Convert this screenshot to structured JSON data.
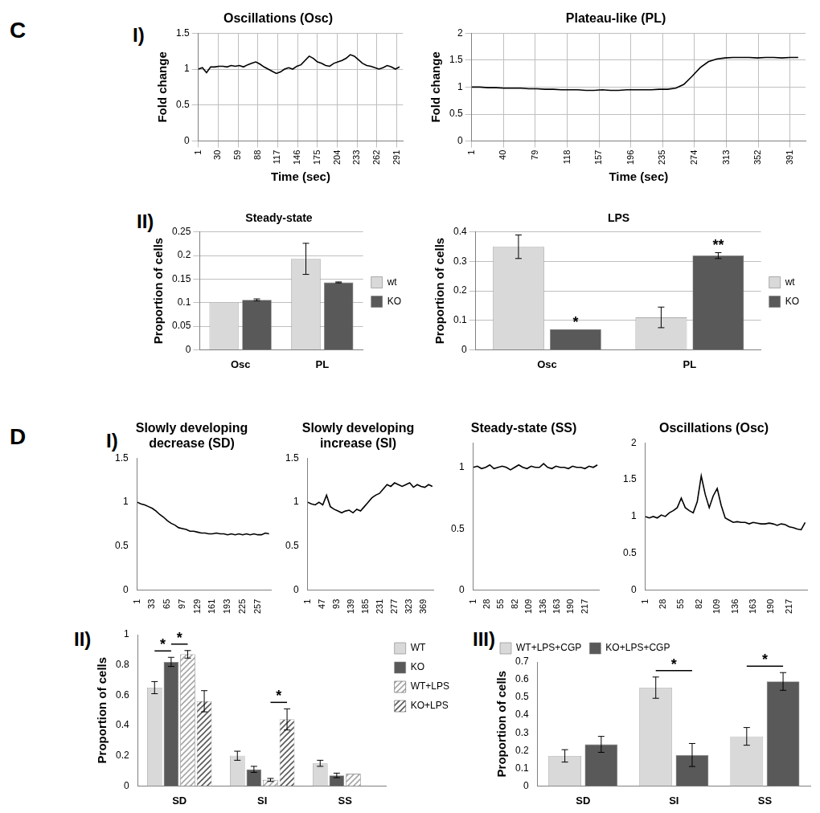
{
  "panel_labels": [
    "C",
    "I)",
    "II)",
    "D",
    "I)",
    "II)",
    "III)"
  ],
  "chart_data": [
    {
      "type": "line",
      "title": "Oscillations (Osc)",
      "x_label": "Time (sec)",
      "y_label": "Fold change",
      "color": "#000000",
      "grid": true,
      "x": [
        1,
        7,
        13,
        19,
        25,
        31,
        37,
        43,
        49,
        55,
        61,
        67,
        73,
        79,
        85,
        91,
        97,
        103,
        109,
        115,
        121,
        127,
        133,
        139,
        145,
        151,
        157,
        163,
        169,
        175,
        181,
        187,
        193,
        199,
        205,
        211,
        217,
        223,
        229,
        235,
        241,
        247,
        253,
        259,
        265,
        271,
        277,
        283,
        289,
        295
      ],
      "values": [
        1.0,
        1.02,
        0.95,
        1.03,
        1.03,
        1.04,
        1.04,
        1.03,
        1.05,
        1.04,
        1.05,
        1.03,
        1.06,
        1.08,
        1.1,
        1.07,
        1.03,
        1.0,
        0.97,
        0.94,
        0.96,
        1.0,
        1.02,
        1.0,
        1.04,
        1.06,
        1.12,
        1.18,
        1.15,
        1.1,
        1.08,
        1.05,
        1.04,
        1.08,
        1.1,
        1.12,
        1.15,
        1.2,
        1.18,
        1.13,
        1.08,
        1.05,
        1.04,
        1.02,
        1.0,
        1.02,
        1.05,
        1.03,
        1.0,
        1.03
      ],
      "xlim": [
        1,
        300
      ],
      "xticks": [
        1,
        30,
        59,
        88,
        117,
        146,
        175,
        204,
        233,
        262,
        291
      ],
      "ylim": [
        0,
        1.5
      ],
      "yticks": [
        0,
        0.5,
        1,
        1.5
      ]
    },
    {
      "type": "line",
      "title": "Plateau-like (PL)",
      "x_label": "Time (sec)",
      "y_label": "Fold change",
      "color": "#000000",
      "grid": true,
      "x": [
        1,
        11,
        21,
        31,
        41,
        51,
        61,
        71,
        81,
        91,
        101,
        111,
        121,
        131,
        141,
        151,
        161,
        171,
        181,
        191,
        201,
        211,
        221,
        231,
        241,
        251,
        261,
        271,
        281,
        291,
        301,
        311,
        321,
        331,
        341,
        351,
        361,
        371,
        381,
        391,
        401
      ],
      "values": [
        1.0,
        1.0,
        0.99,
        0.99,
        0.98,
        0.98,
        0.98,
        0.97,
        0.97,
        0.96,
        0.96,
        0.95,
        0.95,
        0.95,
        0.94,
        0.94,
        0.95,
        0.94,
        0.94,
        0.95,
        0.95,
        0.95,
        0.95,
        0.96,
        0.96,
        0.98,
        1.05,
        1.2,
        1.36,
        1.47,
        1.52,
        1.54,
        1.55,
        1.55,
        1.55,
        1.54,
        1.55,
        1.55,
        1.54,
        1.55,
        1.55
      ],
      "xlim": [
        1,
        410
      ],
      "xticks": [
        1,
        40,
        79,
        118,
        157,
        196,
        235,
        274,
        313,
        352,
        391
      ],
      "ylim": [
        0,
        2
      ],
      "yticks": [
        0,
        0.5,
        1,
        1.5,
        2
      ]
    },
    {
      "type": "bar",
      "title": "Steady-state",
      "y_label": "Proportion of cells",
      "grid": true,
      "legend": "right",
      "categories": [
        "Osc",
        "PL"
      ],
      "series": [
        {
          "name": "wt",
          "color": "#d9d9d9",
          "values": [
            0.1,
            0.193
          ],
          "errors": [
            0,
            0.033
          ]
        },
        {
          "name": "KO",
          "color": "#595959",
          "values": [
            0.106,
            0.143
          ],
          "errors": [
            0.002,
            0.001
          ]
        }
      ],
      "ylim": [
        0,
        0.25
      ],
      "yticks": [
        0,
        0.05,
        0.1,
        0.15,
        0.2,
        0.25
      ]
    },
    {
      "type": "bar",
      "title": "LPS",
      "y_label": "Proportion of cells",
      "grid": true,
      "legend": "right",
      "categories": [
        "Osc",
        "PL"
      ],
      "series": [
        {
          "name": "wt",
          "color": "#d9d9d9",
          "values": [
            0.35,
            0.11
          ],
          "errors": [
            0.04,
            0.035
          ]
        },
        {
          "name": "KO",
          "color": "#595959",
          "values": [
            0.07,
            0.32
          ],
          "errors": [
            0,
            0.01
          ]
        }
      ],
      "annotations": [
        {
          "text": "*",
          "category": "Osc",
          "series": [
            "KO"
          ]
        },
        {
          "text": "**",
          "category": "PL",
          "series": [
            "KO"
          ]
        }
      ],
      "ylim": [
        0,
        0.4
      ],
      "yticks": [
        0,
        0.1,
        0.2,
        0.3,
        0.4
      ]
    },
    {
      "type": "line",
      "title": [
        "Slowly developing",
        "decrease (SD)"
      ],
      "color": "#000000",
      "grid": false,
      "x": [
        1,
        9,
        17,
        25,
        33,
        41,
        49,
        57,
        65,
        73,
        81,
        89,
        97,
        105,
        113,
        121,
        129,
        137,
        145,
        153,
        161,
        169,
        177,
        185,
        193,
        201,
        209,
        217,
        225,
        233,
        241,
        249,
        257,
        265,
        273,
        281
      ],
      "values": [
        1.0,
        0.98,
        0.97,
        0.95,
        0.93,
        0.9,
        0.86,
        0.83,
        0.79,
        0.76,
        0.74,
        0.71,
        0.7,
        0.69,
        0.67,
        0.67,
        0.66,
        0.65,
        0.65,
        0.64,
        0.64,
        0.65,
        0.64,
        0.64,
        0.63,
        0.64,
        0.63,
        0.64,
        0.63,
        0.64,
        0.63,
        0.64,
        0.63,
        0.63,
        0.65,
        0.64
      ],
      "xlim": [
        1,
        285
      ],
      "xticks": [
        1,
        33,
        65,
        97,
        129,
        161,
        193,
        225,
        257
      ],
      "ylim": [
        0,
        1.5
      ],
      "yticks": [
        0,
        0.5,
        1,
        1.5
      ]
    },
    {
      "type": "line",
      "title": [
        "Slowly developing",
        "increase (SI)"
      ],
      "color": "#000000",
      "grid": false,
      "x": [
        1,
        13,
        25,
        37,
        49,
        61,
        73,
        85,
        97,
        109,
        121,
        133,
        145,
        157,
        169,
        181,
        193,
        205,
        217,
        229,
        241,
        253,
        265,
        277,
        289,
        301,
        313,
        325,
        337,
        349,
        361,
        373,
        385,
        397
      ],
      "values": [
        1.0,
        0.98,
        0.97,
        1.0,
        0.97,
        1.08,
        0.95,
        0.92,
        0.9,
        0.88,
        0.9,
        0.91,
        0.88,
        0.92,
        0.9,
        0.95,
        1.0,
        1.05,
        1.08,
        1.1,
        1.15,
        1.2,
        1.18,
        1.22,
        1.2,
        1.18,
        1.2,
        1.22,
        1.17,
        1.2,
        1.18,
        1.17,
        1.2,
        1.18
      ],
      "xlim": [
        1,
        400
      ],
      "xticks": [
        1,
        47,
        93,
        139,
        185,
        231,
        277,
        323,
        369
      ],
      "ylim": [
        0,
        1.5
      ],
      "yticks": [
        0,
        0.5,
        1,
        1.5
      ]
    },
    {
      "type": "line",
      "title": "Steady-state (SS)",
      "color": "#000000",
      "grid": false,
      "x": [
        1,
        9,
        17,
        25,
        33,
        41,
        49,
        57,
        65,
        73,
        81,
        89,
        97,
        105,
        113,
        121,
        129,
        137,
        145,
        153,
        161,
        169,
        177,
        185,
        193,
        201,
        209,
        217,
        225,
        233,
        241
      ],
      "values": [
        1.0,
        1.01,
        0.99,
        1.0,
        1.02,
        0.99,
        1.0,
        1.01,
        1.0,
        0.98,
        1.0,
        1.02,
        1.0,
        0.99,
        1.01,
        1.0,
        1.0,
        1.03,
        1.0,
        0.99,
        1.01,
        1.0,
        1.0,
        0.99,
        1.01,
        1.0,
        1.0,
        0.99,
        1.01,
        1.0,
        1.02
      ],
      "xlim": [
        1,
        244
      ],
      "xticks": [
        1,
        28,
        55,
        82,
        109,
        136,
        163,
        190,
        217
      ],
      "ylim": [
        0,
        1.2
      ],
      "yticks": [
        0,
        0.5,
        1
      ]
    },
    {
      "type": "line",
      "title": "Oscillations (Osc)",
      "color": "#000000",
      "grid": false,
      "x": [
        1,
        7,
        13,
        19,
        25,
        31,
        37,
        43,
        49,
        55,
        61,
        67,
        73,
        79,
        85,
        91,
        97,
        103,
        109,
        115,
        121,
        127,
        133,
        139,
        145,
        151,
        157,
        163,
        169,
        175,
        181,
        187,
        193,
        199,
        205,
        211,
        217,
        223,
        229,
        235,
        241
      ],
      "values": [
        1.0,
        0.98,
        1.0,
        0.98,
        1.02,
        1.0,
        1.05,
        1.08,
        1.12,
        1.25,
        1.12,
        1.08,
        1.05,
        1.2,
        1.55,
        1.3,
        1.12,
        1.28,
        1.38,
        1.15,
        0.98,
        0.95,
        0.92,
        0.93,
        0.92,
        0.92,
        0.9,
        0.92,
        0.91,
        0.9,
        0.9,
        0.91,
        0.9,
        0.88,
        0.9,
        0.89,
        0.86,
        0.85,
        0.83,
        0.82,
        0.92
      ],
      "xlim": [
        1,
        244
      ],
      "xticks": [
        1,
        28,
        55,
        82,
        109,
        136,
        163,
        190,
        217
      ],
      "ylim": [
        0,
        2
      ],
      "yticks": [
        0,
        0.5,
        1,
        1.5,
        2
      ]
    },
    {
      "type": "bar",
      "y_label": "Proportion of cells",
      "grid": false,
      "legend": "right",
      "categories": [
        "SD",
        "SI",
        "SS"
      ],
      "series": [
        {
          "name": "WT",
          "color": "#d9d9d9",
          "values": [
            0.65,
            0.2,
            0.15
          ],
          "errors": [
            0.04,
            0.03,
            0.02
          ]
        },
        {
          "name": "KO",
          "color": "#595959",
          "values": [
            0.82,
            0.11,
            0.07
          ],
          "errors": [
            0.03,
            0.02,
            0.015
          ]
        },
        {
          "name": "WT+LPS",
          "color": "#d9d9d9",
          "values": [
            0.87,
            0.04,
            0.08
          ],
          "errors": [
            0.025,
            0.01,
            0
          ]
        },
        {
          "name": "KO+LPS",
          "color": "#595959",
          "values": [
            0.56,
            0.44,
            0
          ],
          "errors": [
            0.07,
            0.07,
            0
          ]
        }
      ],
      "annotations": [
        {
          "text": "*",
          "category": "SD",
          "series": [
            "WT",
            "KO"
          ]
        },
        {
          "text": "*",
          "category": "SD",
          "series": [
            "KO",
            "WT+LPS"
          ]
        },
        {
          "text": "*",
          "category": "SI",
          "series": [
            "WT+LPS",
            "KO+LPS"
          ]
        }
      ],
      "ylim": [
        0,
        1
      ],
      "yticks": [
        0,
        0.2,
        0.4,
        0.6,
        0.8,
        1
      ]
    },
    {
      "type": "bar",
      "y_label": "Proportion of cells",
      "grid": false,
      "legend": "top",
      "categories": [
        "SD",
        "SI",
        "SS"
      ],
      "series": [
        {
          "name": "WT+LPS+CGP",
          "color": "#d9d9d9",
          "values": [
            0.17,
            0.555,
            0.28
          ],
          "errors": [
            0.035,
            0.06,
            0.05
          ]
        },
        {
          "name": "KO+LPS+CGP",
          "color": "#595959",
          "values": [
            0.235,
            0.175,
            0.59
          ],
          "errors": [
            0.045,
            0.065,
            0.05
          ]
        }
      ],
      "annotations": [
        {
          "text": "*",
          "category": "SI",
          "series": [
            "WT+LPS+CGP",
            "KO+LPS+CGP"
          ]
        },
        {
          "text": "*",
          "category": "SS",
          "series": [
            "WT+LPS+CGP",
            "KO+LPS+CGP"
          ]
        }
      ],
      "ylim": [
        0,
        0.7
      ],
      "yticks": [
        0,
        0.1,
        0.2,
        0.3,
        0.4,
        0.5,
        0.6,
        0.7
      ]
    }
  ]
}
